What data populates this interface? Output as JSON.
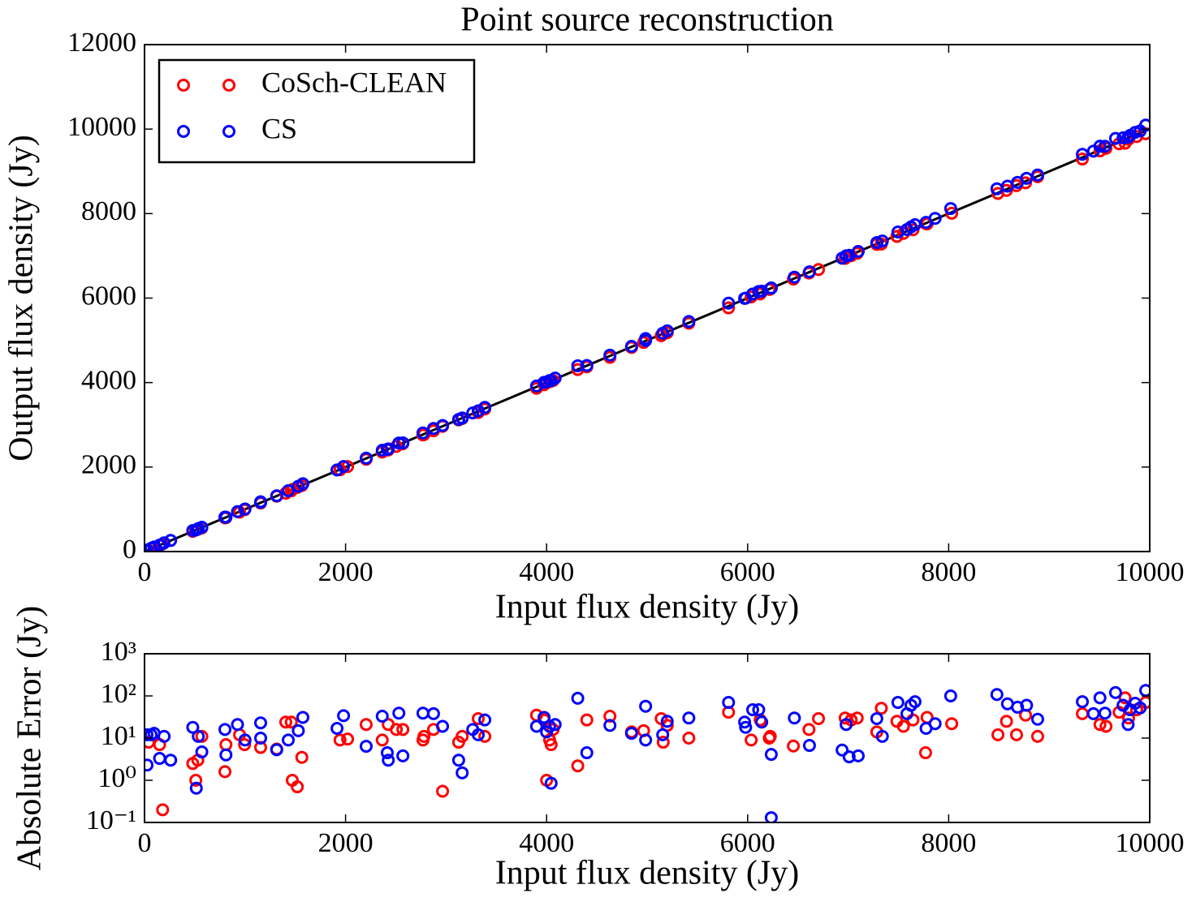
{
  "chart_data": [
    {
      "type": "scatter",
      "title": "Point source reconstruction",
      "xlabel": "Input flux density (Jy)",
      "ylabel": "Output flux density (Jy)",
      "xlim": [
        0,
        10000
      ],
      "xticks": [
        0,
        2000,
        4000,
        6000,
        8000,
        10000
      ],
      "ylim": [
        0,
        12000
      ],
      "yticks": [
        0,
        2000,
        4000,
        6000,
        8000,
        10000,
        12000
      ],
      "legend": "upper left",
      "line": {
        "color": "#000000",
        "x": [
          0,
          10000
        ],
        "values": [
          0,
          10000
        ]
      },
      "series": [
        {
          "name": "CoSch-CLEAN",
          "color": "#ff0000",
          "x": [
            40,
            150,
            180,
            480,
            510,
            530,
            570,
            800,
            810,
            945,
            995,
            1155,
            1315,
            1405,
            1460,
            1470,
            1520,
            1565,
            1945,
            2020,
            2205,
            2365,
            2425,
            2505,
            2570,
            2770,
            2780,
            2875,
            2965,
            3125,
            3160,
            3320,
            3385,
            3900,
            3975,
            4000,
            4030,
            4045,
            4065,
            4310,
            4400,
            4630,
            4845,
            4965,
            5140,
            5160,
            5200,
            5415,
            5810,
            6035,
            6125,
            6215,
            6225,
            6455,
            6610,
            6705,
            6970,
            7030,
            7090,
            7285,
            7330,
            7485,
            7550,
            7645,
            7770,
            7785,
            8030,
            8490,
            8575,
            8675,
            8765,
            8885,
            9330,
            9505,
            9565,
            9695,
            9755,
            9790,
            9870,
            9960
          ],
          "values": [
            32,
            143,
            180,
            478,
            509,
            527,
            559,
            798,
            803,
            933,
            988,
            1149,
            1310,
            1381,
            1436,
            1469,
            1519,
            1562,
            1936,
            2011,
            2184,
            2356,
            2404,
            2489,
            2554,
            2761,
            2769,
            2859,
            2964,
            3117,
            3149,
            3291,
            3374,
            3865,
            3948,
            3999,
            4021,
            4038,
            4049,
            4308,
            4373,
            4597,
            4831,
            4950,
            5111,
            5152,
            5180,
            5405,
            5769,
            6026,
            6098,
            6205,
            6214,
            6449,
            6594,
            6676,
            6940,
            7003,
            7060,
            7271,
            7279,
            7460,
            7531,
            7618,
            7766,
            7754,
            8008,
            8478,
            8550,
            8663,
            8730,
            8874,
            9292,
            9484,
            9546,
            9654,
            9665,
            9760,
            9823,
            9890
          ]
        },
        {
          "name": "CS",
          "color": "#0000ff",
          "x": [
            25,
            25,
            65,
            95,
            150,
            195,
            260,
            480,
            515,
            535,
            570,
            800,
            810,
            925,
            1000,
            1155,
            1155,
            1315,
            1430,
            1530,
            1575,
            1915,
            1980,
            2205,
            2365,
            2415,
            2425,
            2530,
            2570,
            2770,
            2875,
            2965,
            3125,
            3160,
            3265,
            3320,
            3385,
            3900,
            3975,
            4000,
            4030,
            4045,
            4085,
            4310,
            4400,
            4630,
            4845,
            4985,
            4985,
            5155,
            5200,
            5415,
            5810,
            5970,
            5980,
            6050,
            6110,
            6140,
            6235,
            6235,
            6465,
            6615,
            6940,
            6980,
            7010,
            7100,
            7285,
            7340,
            7495,
            7585,
            7625,
            7665,
            7775,
            7865,
            8020,
            8480,
            8585,
            8685,
            8775,
            8885,
            9330,
            9440,
            9505,
            9555,
            9660,
            9735,
            9785,
            9805,
            9855,
            9905,
            9960
          ],
          "values": [
            37,
            27,
            77,
            108,
            153,
            206,
            263,
            498,
            516,
            546,
            575,
            816,
            814,
            946,
            1009,
            1178,
            1165,
            1320,
            1439,
            1545,
            1606,
            1932,
            2014,
            2211,
            2398,
            2420,
            2428,
            2569,
            2574,
            2809,
            2913,
            2984,
            3128,
            3162,
            3281,
            3332,
            3412,
            3919,
            4006,
            4014,
            4049,
            4046,
            4106,
            4398,
            4405,
            4650,
            4858,
            5042,
            4994,
            5167,
            5225,
            5445,
            5880,
            5994,
            5998,
            6097,
            6157,
            6164,
            6239,
            6235,
            6495,
            6622,
            6945,
            7001,
            7014,
            7104,
            7314,
            7351,
            7565,
            7623,
            7685,
            7738,
            7792,
            7887,
            8120,
            8588,
            8650,
            8739,
            8835,
            8913,
            9403,
            9478,
            9595,
            9594,
            9780,
            9795,
            9806,
            9852,
            9922,
            9957,
            10095
          ]
        }
      ]
    },
    {
      "type": "scatter",
      "xlabel": "Input flux density (Jy)",
      "ylabel": "Absolute Error (Jy)",
      "xlim": [
        0,
        10000
      ],
      "xticks": [
        0,
        2000,
        4000,
        6000,
        8000,
        10000
      ],
      "yscale": "log",
      "ylim": [
        0.1,
        1000
      ],
      "yticks": [
        {
          "value": 0.1,
          "label": "10⁻¹"
        },
        {
          "value": 1,
          "label": "10⁰"
        },
        {
          "value": 10,
          "label": "10¹"
        },
        {
          "value": 100,
          "label": "10²"
        },
        {
          "value": 1000,
          "label": "10³"
        }
      ],
      "series": [
        {
          "color": "#ff0000",
          "x": [
            40,
            150,
            180,
            480,
            510,
            530,
            570,
            800,
            810,
            945,
            995,
            1155,
            1315,
            1405,
            1460,
            1470,
            1520,
            1565,
            1945,
            2020,
            2205,
            2365,
            2425,
            2505,
            2570,
            2770,
            2780,
            2875,
            2965,
            3125,
            3160,
            3320,
            3385,
            3900,
            3975,
            4000,
            4030,
            4045,
            4065,
            4310,
            4400,
            4630,
            4845,
            4965,
            5140,
            5160,
            5200,
            5415,
            5810,
            6035,
            6125,
            6215,
            6225,
            6455,
            6610,
            6705,
            6970,
            7030,
            7090,
            7285,
            7330,
            7485,
            7550,
            7645,
            7770,
            7785,
            8030,
            8490,
            8575,
            8675,
            8765,
            8885,
            9330,
            9505,
            9565,
            9695,
            9755,
            9790,
            9870,
            9960
          ],
          "values": [
            8,
            7,
            0.2,
            2.5,
            1,
            3,
            11,
            1.6,
            7,
            12,
            7,
            6,
            5.5,
            24,
            24,
            1,
            0.7,
            3.5,
            9,
            9.5,
            21,
            9,
            21,
            16,
            16,
            9,
            11,
            16,
            0.55,
            8,
            11,
            29,
            11,
            35,
            27,
            1,
            9,
            7,
            16,
            2.2,
            27,
            33,
            14,
            15,
            29,
            8,
            20,
            10,
            41,
            9,
            27,
            10,
            11,
            6.5,
            16,
            29,
            30,
            27,
            30,
            14,
            51,
            25,
            19,
            27,
            4.5,
            31,
            22,
            12,
            25,
            12,
            35,
            11,
            38,
            21,
            19,
            41,
            90,
            30,
            47,
            70
          ]
        },
        {
          "color": "#0000ff",
          "x": [
            25,
            25,
            65,
            95,
            150,
            195,
            260,
            480,
            515,
            535,
            570,
            800,
            810,
            925,
            1000,
            1155,
            1155,
            1315,
            1430,
            1530,
            1575,
            1915,
            1980,
            2205,
            2365,
            2415,
            2425,
            2530,
            2570,
            2770,
            2875,
            2965,
            3125,
            3160,
            3265,
            3320,
            3385,
            3900,
            3975,
            4000,
            4030,
            4045,
            4085,
            4310,
            4400,
            4630,
            4845,
            4985,
            4985,
            5155,
            5200,
            5415,
            5810,
            5970,
            5980,
            6050,
            6110,
            6140,
            6235,
            6235,
            6465,
            6615,
            6940,
            6980,
            7010,
            7100,
            7285,
            7340,
            7495,
            7585,
            7625,
            7665,
            7775,
            7865,
            8020,
            8480,
            8585,
            8685,
            8775,
            8885,
            9330,
            9440,
            9505,
            9555,
            9660,
            9735,
            9785,
            9805,
            9855,
            9905,
            9960
          ],
          "values": [
            12,
            2.3,
            12,
            13,
            3.3,
            11,
            3,
            18,
            0.65,
            11,
            4.7,
            16,
            4,
            21,
            9,
            23,
            10,
            5.3,
            9,
            15,
            31,
            17,
            34,
            6.4,
            33,
            4.5,
            3,
            39,
            3.8,
            39,
            38,
            19,
            3,
            1.5,
            16,
            12,
            27,
            19,
            31,
            14,
            19,
            0.85,
            21,
            88,
            4.5,
            20,
            13,
            57,
            9,
            12,
            25,
            30,
            70,
            24,
            18,
            47,
            47,
            24,
            4.1,
            0.13,
            30,
            6.7,
            5.2,
            21,
            3.6,
            3.8,
            29,
            11,
            70,
            38,
            60,
            73,
            17,
            22,
            100,
            108,
            65,
            54,
            60,
            28,
            73,
            38,
            90,
            39,
            120,
            60,
            21,
            47,
            67,
            52,
            135
          ]
        }
      ]
    }
  ]
}
